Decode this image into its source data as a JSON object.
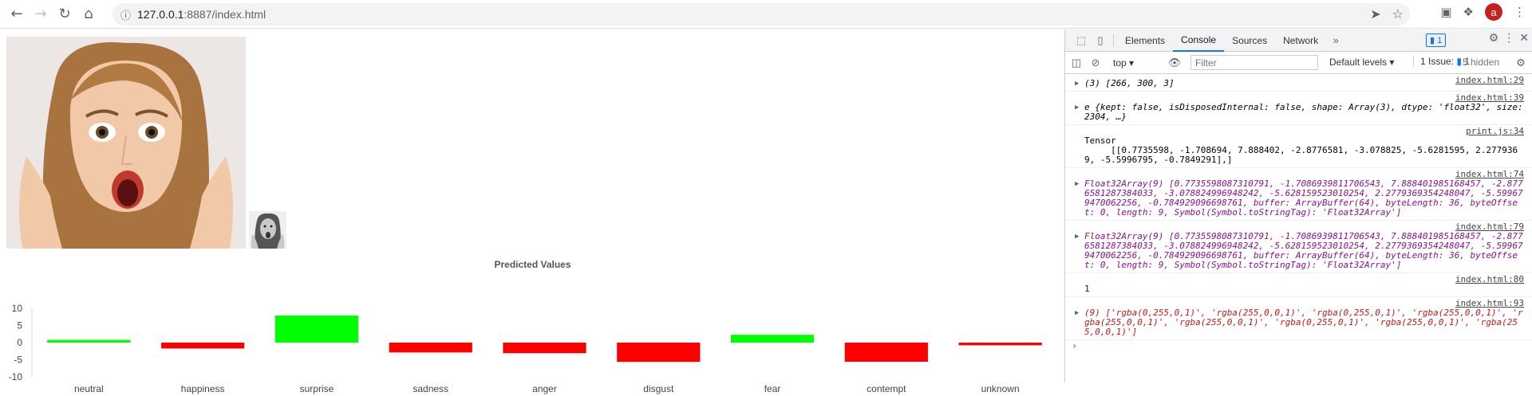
{
  "browser": {
    "url_host": "127.0.0.1",
    "url_rest": ":8887/index.html",
    "avatar_letter": "a"
  },
  "page": {
    "chart_title": "Predicted Values"
  },
  "chart_data": {
    "type": "bar",
    "title": "Predicted Values",
    "categories": [
      "neutral",
      "happiness",
      "surprise",
      "sadness",
      "anger",
      "disgust",
      "fear",
      "contempt",
      "unknown"
    ],
    "values": [
      0.7735598,
      -1.708694,
      7.888402,
      -2.8776581,
      -3.078825,
      -5.6281595,
      2.2779369,
      -5.5996795,
      -0.7849291
    ],
    "colors": [
      "#00ff00",
      "#ff0000",
      "#00ff00",
      "#ff0000",
      "#ff0000",
      "#ff0000",
      "#00ff00",
      "#ff0000",
      "#ff0000"
    ],
    "ylim": [
      -10,
      10
    ],
    "yticks": [
      10,
      5,
      0,
      -5,
      -10
    ]
  },
  "devtools": {
    "tabs": [
      "Elements",
      "Console",
      "Sources",
      "Network"
    ],
    "active_tab": "Console",
    "message_count": "1",
    "context": "top",
    "filter_placeholder": "Filter",
    "levels": "Default levels",
    "issue": "1 Issue:",
    "issue_count": "1",
    "hidden": "5 hidden",
    "rows": [
      {
        "text": "(3) [266, 300, 3]",
        "src": "index.html:29"
      },
      {
        "text": "e {kept: false, isDisposedInternal: false, shape: Array(3), dtype: 'float32', size: 2304, …}",
        "src": "index.html:39"
      },
      {
        "text": "Tensor\n     [[0.7735598, -1.708694, 7.888402, -2.8776581, -3.078825, -5.6281595, 2.2779369, -5.5996795, -0.7849291],]",
        "src": "print.js:34"
      },
      {
        "text": "Float32Array(9) [0.7735598087310791, -1.7086939811706543, 7.888401985168457, -2.8776581287384033, -3.078824996948242, -5.628159523010254, 2.2779369354248047, -5.599679470062256, -0.784929096698761, buffer: ArrayBuffer(64), byteLength: 36, byteOffset: 0, length: 9, Symbol(Symbol.toStringTag): 'Float32Array']",
        "src": "index.html:74"
      },
      {
        "text": "Float32Array(9) [0.7735598087310791, -1.7086939811706543, 7.888401985168457, -2.8776581287384033, -3.078824996948242, -5.628159523010254, 2.2779369354248047, -5.599679470062256, -0.784929096698761, buffer: ArrayBuffer(64), byteLength: 36, byteOffset: 0, length: 9, Symbol(Symbol.toStringTag): 'Float32Array']",
        "src": "index.html:79"
      },
      {
        "text": "1",
        "src": "index.html:80"
      },
      {
        "text": "(9) ['rgba(0,255,0,1)', 'rgba(255,0,0,1)', 'rgba(0,255,0,1)', 'rgba(255,0,0,1)', 'rgba(255,0,0,1)', 'rgba(255,0,0,1)', 'rgba(0,255,0,1)', 'rgba(255,0,0,1)', 'rgba(255,0,0,1)']",
        "src": "index.html:93"
      }
    ],
    "prompt": "›"
  }
}
